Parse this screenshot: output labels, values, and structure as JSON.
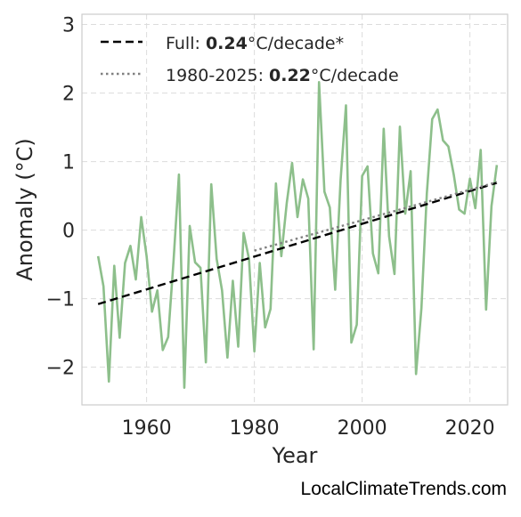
{
  "chart_data": {
    "type": "line",
    "xlabel": "Year",
    "ylabel": "Anomaly (°C)",
    "xlim": [
      1948,
      2027
    ],
    "ylim": [
      -2.55,
      3.15
    ],
    "xticks": [
      1960,
      1980,
      2000,
      2020
    ],
    "yticks": [
      -2,
      -1,
      0,
      1,
      2,
      3
    ],
    "ytick_labels": [
      "−2",
      "−1",
      "0",
      "1",
      "2",
      "3"
    ],
    "grid": true,
    "legend_position": "top-left",
    "series": [
      {
        "style": "line",
        "color": "#8dbf8b",
        "x": [
          1951,
          1952,
          1953,
          1954,
          1955,
          1956,
          1957,
          1958,
          1959,
          1960,
          1961,
          1962,
          1963,
          1964,
          1965,
          1966,
          1967,
          1968,
          1969,
          1970,
          1971,
          1972,
          1973,
          1974,
          1975,
          1976,
          1977,
          1978,
          1979,
          1980,
          1981,
          1982,
          1983,
          1984,
          1985,
          1986,
          1987,
          1988,
          1989,
          1990,
          1991,
          1992,
          1993,
          1994,
          1995,
          1996,
          1997,
          1998,
          1999,
          2000,
          2001,
          2002,
          2003,
          2004,
          2005,
          2006,
          2007,
          2008,
          2009,
          2010,
          2011,
          2012,
          2013,
          2014,
          2015,
          2016,
          2017,
          2018,
          2019,
          2020,
          2021,
          2022,
          2023,
          2024,
          2025
        ],
        "y": [
          -0.38,
          -0.82,
          -2.21,
          -0.52,
          -1.57,
          -0.48,
          -0.23,
          -0.72,
          0.19,
          -0.38,
          -1.19,
          -0.88,
          -1.75,
          -1.56,
          -0.45,
          0.81,
          -2.3,
          0.06,
          -0.47,
          -0.55,
          -1.93,
          0.67,
          -0.42,
          -0.88,
          -1.86,
          -0.74,
          -1.7,
          -0.04,
          -0.42,
          -1.77,
          -0.48,
          -1.42,
          -1.15,
          0.68,
          -0.38,
          0.39,
          0.98,
          0.19,
          0.74,
          0.46,
          -1.74,
          2.16,
          0.56,
          0.33,
          -0.87,
          0.73,
          1.82,
          -1.64,
          -1.38,
          0.79,
          0.93,
          -0.34,
          -0.63,
          1.48,
          -0.09,
          -0.64,
          1.51,
          0.24,
          0.86,
          -2.1,
          -1.14,
          0.53,
          1.62,
          1.76,
          1.31,
          1.22,
          0.81,
          0.3,
          0.24,
          0.75,
          0.32,
          1.17,
          -1.16,
          0.35,
          0.95
        ]
      },
      {
        "name": "Full",
        "style": "dashed",
        "color": "#000000",
        "x": [
          1951,
          2025
        ],
        "y": [
          -1.08,
          0.69
        ]
      },
      {
        "name": "1980-2025",
        "style": "dotted",
        "color": "#808080",
        "x": [
          1980,
          2025
        ],
        "y": [
          -0.3,
          0.7
        ]
      }
    ]
  },
  "legend": [
    {
      "prefix": "Full: ",
      "value": "0.24",
      "suffix": "°C/decade*"
    },
    {
      "prefix": "1980-2025: ",
      "value": "0.22",
      "suffix": "°C/decade"
    }
  ],
  "credit": "LocalClimateTrends.com"
}
